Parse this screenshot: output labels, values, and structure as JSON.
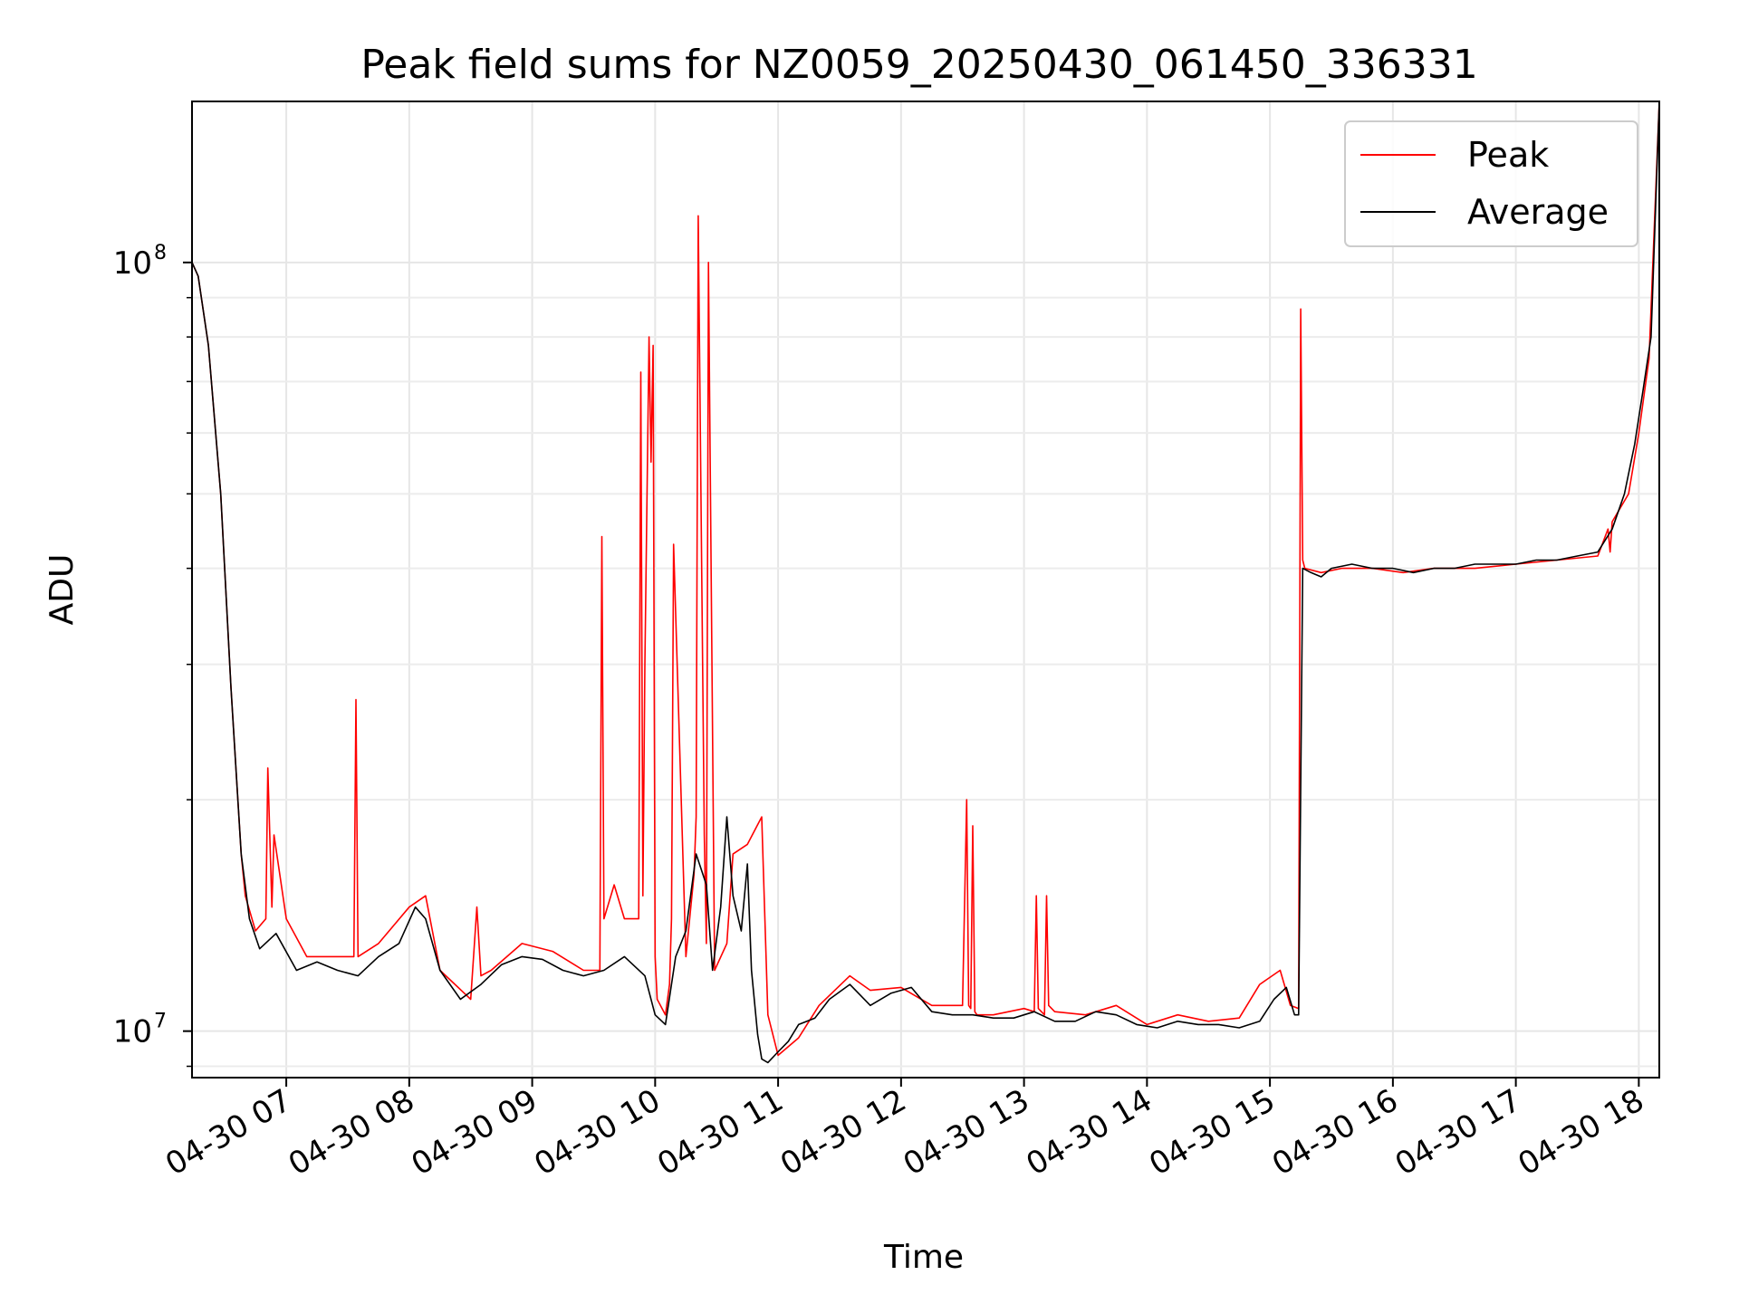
{
  "chart_data": {
    "type": "line",
    "title": "Peak field sums for NZ0059_20250430_061450_336331",
    "xlabel": "Time",
    "ylabel": "ADU",
    "yscale": "log",
    "ylim": [
      8700000,
      162000000
    ],
    "xlim": [
      "2025-04-30 06:14",
      "2025-04-30 18:10"
    ],
    "grid": true,
    "legend_position": "top-right",
    "x_ticks": [
      {
        "x": "2025-04-30 07:00",
        "label": "04-30 07"
      },
      {
        "x": "2025-04-30 08:00",
        "label": "04-30 08"
      },
      {
        "x": "2025-04-30 09:00",
        "label": "04-30 09"
      },
      {
        "x": "2025-04-30 10:00",
        "label": "04-30 10"
      },
      {
        "x": "2025-04-30 11:00",
        "label": "04-30 11"
      },
      {
        "x": "2025-04-30 12:00",
        "label": "04-30 12"
      },
      {
        "x": "2025-04-30 13:00",
        "label": "04-30 13"
      },
      {
        "x": "2025-04-30 14:00",
        "label": "04-30 14"
      },
      {
        "x": "2025-04-30 15:00",
        "label": "04-30 15"
      },
      {
        "x": "2025-04-30 16:00",
        "label": "04-30 16"
      },
      {
        "x": "2025-04-30 17:00",
        "label": "04-30 17"
      },
      {
        "x": "2025-04-30 18:00",
        "label": "04-30 18"
      }
    ],
    "y_ticks": [
      {
        "y": 10000000,
        "base": "10",
        "exp": "7"
      },
      {
        "y": 100000000,
        "base": "10",
        "exp": "8"
      }
    ],
    "series": [
      {
        "name": "Peak",
        "color": "#ff0000",
        "x": [
          "2025-04-30 06:14",
          "2025-04-30 06:17",
          "2025-04-30 06:22",
          "2025-04-30 06:28",
          "2025-04-30 06:33",
          "2025-04-30 06:38",
          "2025-04-30 06:40",
          "2025-04-30 06:45",
          "2025-04-30 06:50",
          "2025-04-30 06:51",
          "2025-04-30 06:53",
          "2025-04-30 06:54",
          "2025-04-30 07:00",
          "2025-04-30 07:10",
          "2025-04-30 07:25",
          "2025-04-30 07:33",
          "2025-04-30 07:34",
          "2025-04-30 07:35",
          "2025-04-30 07:45",
          "2025-04-30 08:00",
          "2025-04-30 08:08",
          "2025-04-30 08:15",
          "2025-04-30 08:30",
          "2025-04-30 08:33",
          "2025-04-30 08:35",
          "2025-04-30 08:40",
          "2025-04-30 08:55",
          "2025-04-30 09:10",
          "2025-04-30 09:25",
          "2025-04-30 09:33",
          "2025-04-30 09:34",
          "2025-04-30 09:35",
          "2025-04-30 09:40",
          "2025-04-30 09:45",
          "2025-04-30 09:52",
          "2025-04-30 09:53",
          "2025-04-30 09:54",
          "2025-04-30 09:55",
          "2025-04-30 09:57",
          "2025-04-30 09:58",
          "2025-04-30 09:59",
          "2025-04-30 10:00",
          "2025-04-30 10:01",
          "2025-04-30 10:05",
          "2025-04-30 10:07",
          "2025-04-30 10:08",
          "2025-04-30 10:09",
          "2025-04-30 10:15",
          "2025-04-30 10:19",
          "2025-04-30 10:20",
          "2025-04-30 10:21",
          "2025-04-30 10:24",
          "2025-04-30 10:25",
          "2025-04-30 10:26",
          "2025-04-30 10:29",
          "2025-04-30 10:35",
          "2025-04-30 10:38",
          "2025-04-30 10:45",
          "2025-04-30 10:52",
          "2025-04-30 10:55",
          "2025-04-30 11:00",
          "2025-04-30 11:10",
          "2025-04-30 11:20",
          "2025-04-30 11:35",
          "2025-04-30 11:45",
          "2025-04-30 12:00",
          "2025-04-30 12:15",
          "2025-04-30 12:30",
          "2025-04-30 12:32",
          "2025-04-30 12:33",
          "2025-04-30 12:34",
          "2025-04-30 12:35",
          "2025-04-30 12:36",
          "2025-04-30 12:37",
          "2025-04-30 12:45",
          "2025-04-30 13:00",
          "2025-04-30 13:05",
          "2025-04-30 13:06",
          "2025-04-30 13:07",
          "2025-04-30 13:10",
          "2025-04-30 13:11",
          "2025-04-30 13:12",
          "2025-04-30 13:15",
          "2025-04-30 13:30",
          "2025-04-30 13:45",
          "2025-04-30 14:00",
          "2025-04-30 14:15",
          "2025-04-30 14:30",
          "2025-04-30 14:45",
          "2025-04-30 14:55",
          "2025-04-30 15:05",
          "2025-04-30 15:10",
          "2025-04-30 15:14",
          "2025-04-30 15:15",
          "2025-04-30 15:16",
          "2025-04-30 15:17",
          "2025-04-30 15:25",
          "2025-04-30 15:35",
          "2025-04-30 15:50",
          "2025-04-30 16:05",
          "2025-04-30 16:20",
          "2025-04-30 16:40",
          "2025-04-30 17:00",
          "2025-04-30 17:20",
          "2025-04-30 17:40",
          "2025-04-30 17:45",
          "2025-04-30 17:46",
          "2025-04-30 17:47",
          "2025-04-30 17:55",
          "2025-04-30 18:00",
          "2025-04-30 18:05",
          "2025-04-30 18:10"
        ],
        "y": [
          100000000,
          96000000,
          78000000,
          50000000,
          28000000,
          17000000,
          15000000,
          13500000,
          14000000,
          22000000,
          14500000,
          18000000,
          14000000,
          12500000,
          12500000,
          12500000,
          27000000,
          12500000,
          13000000,
          14500000,
          15000000,
          12000000,
          11000000,
          14500000,
          11800000,
          12000000,
          13000000,
          12700000,
          12000000,
          12000000,
          44000000,
          14000000,
          15500000,
          14000000,
          14000000,
          72000000,
          15000000,
          30000000,
          80000000,
          55000000,
          78000000,
          12500000,
          11000000,
          10500000,
          11500000,
          14000000,
          43000000,
          12500000,
          16000000,
          19000000,
          115000000,
          18000000,
          13000000,
          100000000,
          12000000,
          13000000,
          17000000,
          17500000,
          19000000,
          10500000,
          9300000,
          9800000,
          10800000,
          11800000,
          11300000,
          11400000,
          10800000,
          10800000,
          20000000,
          10800000,
          10700000,
          18500000,
          10600000,
          10500000,
          10500000,
          10700000,
          10600000,
          15000000,
          10700000,
          10500000,
          15000000,
          10800000,
          10600000,
          10500000,
          10800000,
          10200000,
          10500000,
          10300000,
          10400000,
          11500000,
          12000000,
          10800000,
          10700000,
          87000000,
          41000000,
          40000000,
          39500000,
          40000000,
          40000000,
          39500000,
          40000000,
          40000000,
          40500000,
          41000000,
          41500000,
          45000000,
          42000000,
          46000000,
          50000000,
          60000000,
          75000000,
          162000000
        ]
      },
      {
        "name": "Average",
        "color": "#000000",
        "x": [
          "2025-04-30 06:14",
          "2025-04-30 06:17",
          "2025-04-30 06:22",
          "2025-04-30 06:28",
          "2025-04-30 06:33",
          "2025-04-30 06:38",
          "2025-04-30 06:42",
          "2025-04-30 06:47",
          "2025-04-30 06:55",
          "2025-04-30 07:05",
          "2025-04-30 07:15",
          "2025-04-30 07:25",
          "2025-04-30 07:35",
          "2025-04-30 07:45",
          "2025-04-30 07:55",
          "2025-04-30 08:03",
          "2025-04-30 08:08",
          "2025-04-30 08:15",
          "2025-04-30 08:25",
          "2025-04-30 08:35",
          "2025-04-30 08:45",
          "2025-04-30 08:55",
          "2025-04-30 09:05",
          "2025-04-30 09:15",
          "2025-04-30 09:25",
          "2025-04-30 09:35",
          "2025-04-30 09:45",
          "2025-04-30 09:55",
          "2025-04-30 10:00",
          "2025-04-30 10:05",
          "2025-04-30 10:10",
          "2025-04-30 10:15",
          "2025-04-30 10:20",
          "2025-04-30 10:25",
          "2025-04-30 10:28",
          "2025-04-30 10:32",
          "2025-04-30 10:35",
          "2025-04-30 10:38",
          "2025-04-30 10:42",
          "2025-04-30 10:45",
          "2025-04-30 10:47",
          "2025-04-30 10:50",
          "2025-04-30 10:52",
          "2025-04-30 10:55",
          "2025-04-30 11:00",
          "2025-04-30 11:05",
          "2025-04-30 11:10",
          "2025-04-30 11:18",
          "2025-04-30 11:25",
          "2025-04-30 11:35",
          "2025-04-30 11:45",
          "2025-04-30 11:55",
          "2025-04-30 12:05",
          "2025-04-30 12:15",
          "2025-04-30 12:25",
          "2025-04-30 12:35",
          "2025-04-30 12:45",
          "2025-04-30 12:55",
          "2025-04-30 13:05",
          "2025-04-30 13:15",
          "2025-04-30 13:25",
          "2025-04-30 13:35",
          "2025-04-30 13:45",
          "2025-04-30 13:55",
          "2025-04-30 14:05",
          "2025-04-30 14:15",
          "2025-04-30 14:25",
          "2025-04-30 14:35",
          "2025-04-30 14:45",
          "2025-04-30 14:55",
          "2025-04-30 15:02",
          "2025-04-30 15:08",
          "2025-04-30 15:12",
          "2025-04-30 15:14",
          "2025-04-30 15:16",
          "2025-04-30 15:20",
          "2025-04-30 15:25",
          "2025-04-30 15:30",
          "2025-04-30 15:40",
          "2025-04-30 15:50",
          "2025-04-30 16:00",
          "2025-04-30 16:10",
          "2025-04-30 16:20",
          "2025-04-30 16:30",
          "2025-04-30 16:40",
          "2025-04-30 16:50",
          "2025-04-30 17:00",
          "2025-04-30 17:10",
          "2025-04-30 17:20",
          "2025-04-30 17:30",
          "2025-04-30 17:40",
          "2025-04-30 17:47",
          "2025-04-30 17:53",
          "2025-04-30 17:58",
          "2025-04-30 18:02",
          "2025-04-30 18:06",
          "2025-04-30 18:10"
        ],
        "y": [
          100000000,
          96000000,
          78000000,
          50000000,
          28000000,
          17000000,
          14000000,
          12800000,
          13400000,
          12000000,
          12300000,
          12000000,
          11800000,
          12500000,
          13000000,
          14500000,
          14000000,
          12000000,
          11000000,
          11500000,
          12200000,
          12500000,
          12400000,
          12000000,
          11800000,
          12000000,
          12500000,
          11800000,
          10500000,
          10200000,
          12500000,
          13500000,
          17000000,
          15500000,
          12000000,
          14500000,
          19000000,
          15000000,
          13500000,
          16500000,
          12000000,
          9900000,
          9200000,
          9100000,
          9400000,
          9700000,
          10200000,
          10400000,
          11000000,
          11500000,
          10800000,
          11200000,
          11400000,
          10600000,
          10500000,
          10500000,
          10400000,
          10400000,
          10600000,
          10300000,
          10300000,
          10600000,
          10500000,
          10200000,
          10100000,
          10300000,
          10200000,
          10200000,
          10100000,
          10300000,
          11000000,
          11400000,
          10500000,
          10500000,
          40000000,
          39500000,
          39000000,
          40000000,
          40500000,
          40000000,
          40000000,
          39500000,
          40000000,
          40000000,
          40500000,
          40500000,
          40500000,
          41000000,
          41000000,
          41500000,
          42000000,
          45000000,
          50000000,
          58000000,
          68000000,
          80000000,
          162000000
        ]
      }
    ]
  }
}
